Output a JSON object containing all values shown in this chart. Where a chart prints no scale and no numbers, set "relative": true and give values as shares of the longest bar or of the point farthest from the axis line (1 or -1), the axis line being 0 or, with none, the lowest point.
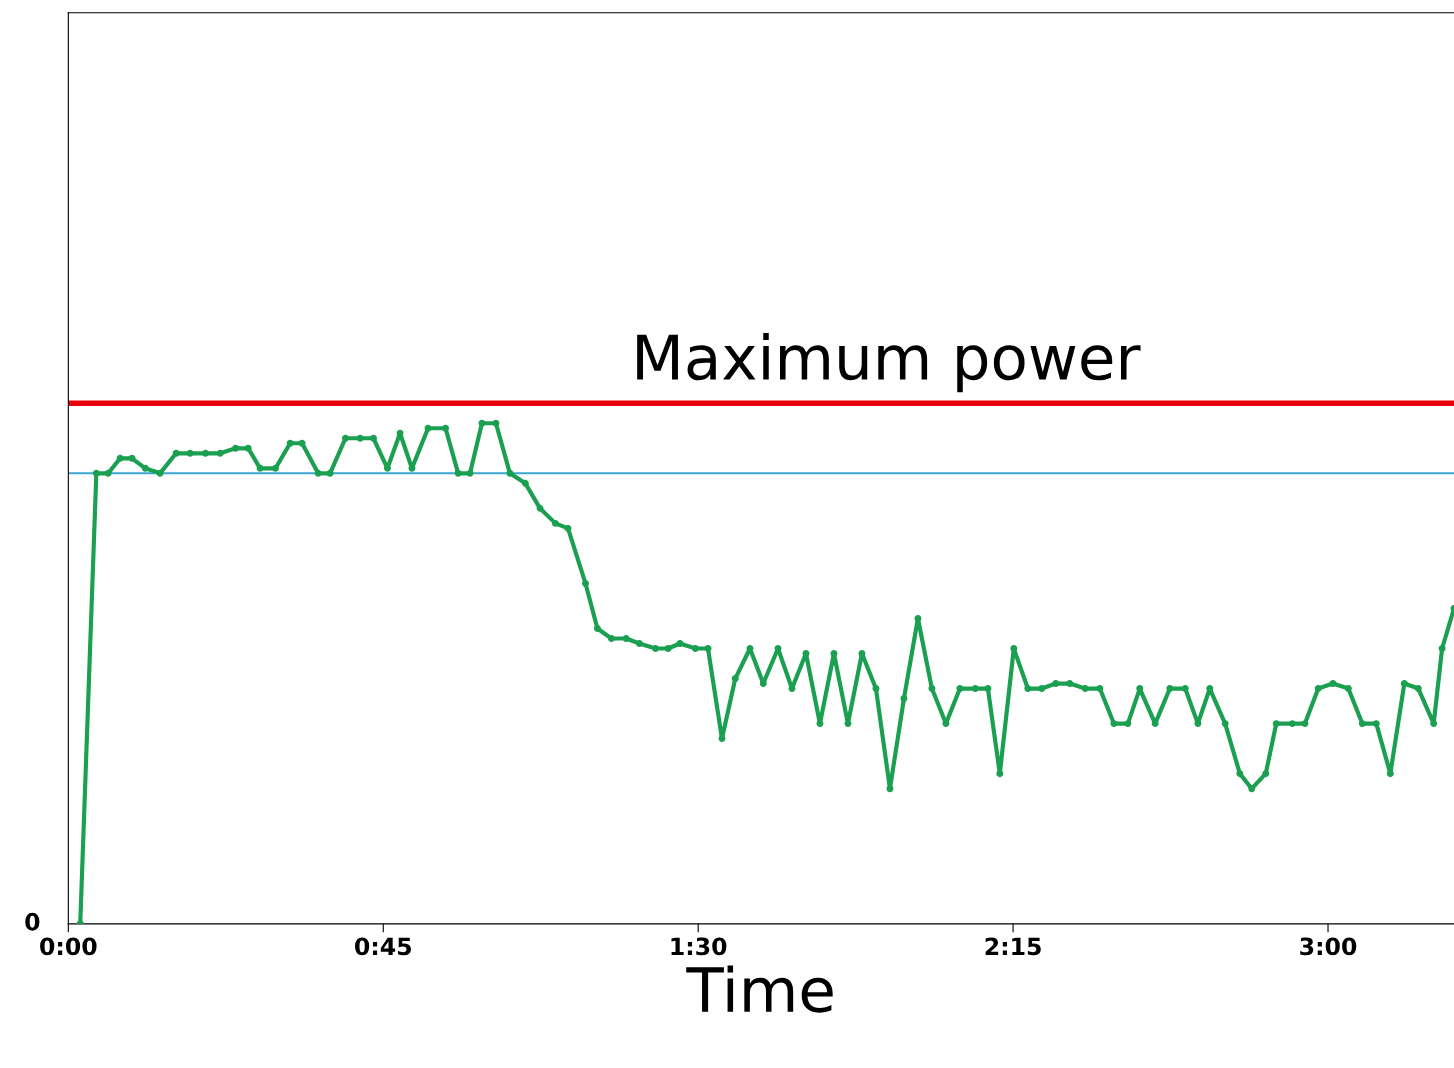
{
  "chart_data": {
    "type": "line",
    "relative": true,
    "xlabel": "Time",
    "annotations": [
      "0"
    ],
    "x": [
      1.7,
      4,
      5.7,
      7.4,
      9.1,
      11,
      13.1,
      15.4,
      17.4,
      19.6,
      21.7,
      23.9,
      25.7,
      27.4,
      29.6,
      31.7,
      33.4,
      35.7,
      37.4,
      39.6,
      41.7,
      43.6,
      45.6,
      47.4,
      49.1,
      51.4,
      53.9,
      55.7,
      57.4,
      59.1,
      61.1,
      63.1,
      65.3,
      67.4,
      69.6,
      71.4,
      73.9,
      75.6,
      77.6,
      79.7,
      81.6,
      83.9,
      85.7,
      87.4,
      89.6,
      91.4,
      93.4,
      95.3,
      97.4,
      99.3,
      101.4,
      103.4,
      105.4,
      107.4,
      109.4,
      111.4,
      113.4,
      115.4,
      117.4,
      119.4,
      121.4,
      123.4,
      125.4,
      127.4,
      129.6,
      131.4,
      133.1,
      135.1,
      137.1,
      139.1,
      141.1,
      143.1,
      145.3,
      147.4,
      149.4,
      151.4,
      153.1,
      155.3,
      157.4,
      159.6,
      161.4,
      163.1,
      165.3,
      167.4,
      169.1,
      171.1,
      172.6,
      174.9,
      176.7,
      178.6,
      180.7,
      182.9,
      184.9,
      186.9,
      188.9,
      190.9,
      192.9,
      195.1,
      196.3,
      198
    ],
    "series": [
      {
        "color": "#1aa050",
        "values": [
          0,
          0.9,
          0.9,
          0.93,
          0.93,
          0.91,
          0.9,
          0.94,
          0.94,
          0.94,
          0.94,
          0.95,
          0.95,
          0.91,
          0.91,
          0.96,
          0.96,
          0.9,
          0.9,
          0.97,
          0.97,
          0.97,
          0.91,
          0.98,
          0.91,
          0.99,
          0.99,
          0.9,
          0.9,
          1.0,
          1.0,
          0.9,
          0.88,
          0.83,
          0.8,
          0.79,
          0.68,
          0.59,
          0.57,
          0.57,
          0.56,
          0.55,
          0.55,
          0.56,
          0.55,
          0.55,
          0.37,
          0.49,
          0.55,
          0.48,
          0.55,
          0.47,
          0.54,
          0.4,
          0.54,
          0.4,
          0.54,
          0.47,
          0.27,
          0.45,
          0.61,
          0.47,
          0.4,
          0.47,
          0.47,
          0.47,
          0.3,
          0.55,
          0.47,
          0.47,
          0.48,
          0.48,
          0.47,
          0.47,
          0.4,
          0.4,
          0.47,
          0.4,
          0.47,
          0.47,
          0.4,
          0.47,
          0.4,
          0.3,
          0.27,
          0.3,
          0.4,
          0.4,
          0.4,
          0.47,
          0.48,
          0.47,
          0.4,
          0.4,
          0.3,
          0.48,
          0.47,
          0.4,
          0.55,
          0.63
        ]
      }
    ],
    "marker": "circle",
    "line_style": "solid",
    "xlim": [
      0,
      198
    ],
    "xticks": [
      {
        "value": 0,
        "label": "0:00"
      },
      {
        "value": 45,
        "label": "0:45"
      },
      {
        "value": 90,
        "label": "1:30"
      },
      {
        "value": 135,
        "label": "2:15"
      },
      {
        "value": 180,
        "label": "3:00"
      }
    ],
    "ref_lines": [
      {
        "axis": "y",
        "value": 1.04,
        "label": "Maximum power",
        "color": "#e8000b"
      },
      {
        "axis": "y",
        "value": 0.9,
        "color": "#3aa6d0"
      }
    ],
    "grid": false,
    "legend": false
  }
}
